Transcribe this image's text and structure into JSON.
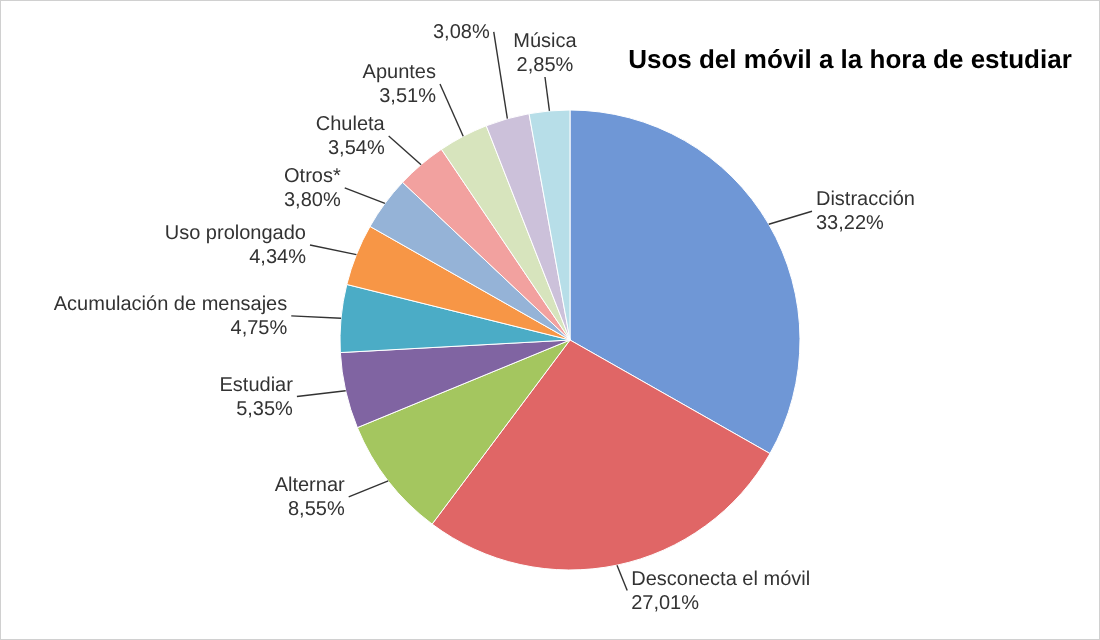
{
  "chart_data": {
    "type": "pie",
    "title": "Usos del móvil a la hora de estudiar",
    "categories": [
      "Distracción",
      "Desconecta el móvil",
      "Alternar",
      "Estudiar",
      "Acumulación de mensajes",
      "Uso prolongado",
      "Otros*",
      "Chuleta",
      "Apuntes",
      null,
      "Música"
    ],
    "values": [
      33.22,
      27.01,
      8.55,
      5.35,
      4.75,
      4.34,
      3.8,
      3.54,
      3.51,
      3.08,
      2.85
    ],
    "value_labels": [
      "33,22%",
      "27,01%",
      "8,55%",
      "5,35%",
      "4,75%",
      "4,34%",
      "3,80%",
      "3,54%",
      "3,51%",
      "3,08%",
      "2,85%"
    ],
    "colors": [
      "#6f97d6",
      "#e06666",
      "#a4c65f",
      "#8064a2",
      "#4bacc6",
      "#f79646",
      "#95b3d7",
      "#f2a19f",
      "#d7e4bd",
      "#ccc1da",
      "#b7dee8"
    ],
    "data_labels": true
  }
}
